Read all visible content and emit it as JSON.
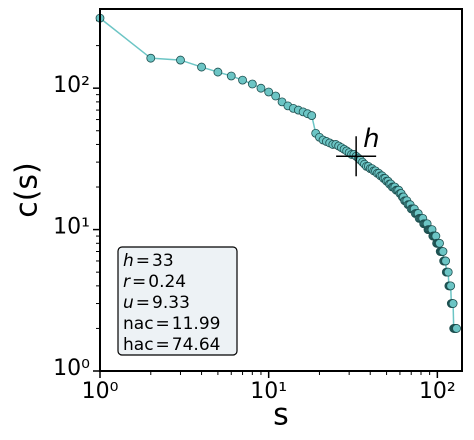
{
  "chart_data": {
    "type": "scatter",
    "x_label": "s",
    "y_label": "c(s)",
    "log_x": true,
    "log_y": true,
    "xlim": [
      1,
      140
    ],
    "ylim": [
      1,
      363
    ],
    "xticks": [
      {
        "value": 1,
        "label": "10⁰"
      },
      {
        "value": 10,
        "label": "10¹"
      },
      {
        "value": 100,
        "label": "10²"
      }
    ],
    "yticks": [
      {
        "value": 1,
        "label": "10⁰"
      },
      {
        "value": 10,
        "label": "10¹"
      },
      {
        "value": 100,
        "label": "10²"
      }
    ],
    "xminorticks": [
      2,
      3,
      4,
      5,
      6,
      7,
      8,
      9,
      20,
      30,
      40,
      50,
      60,
      70,
      80,
      90
    ],
    "yminorticks": [
      2,
      3,
      4,
      5,
      6,
      7,
      8,
      9,
      20,
      30,
      40,
      50,
      60,
      70,
      80,
      90,
      200,
      300
    ],
    "color": "#6cc5c5",
    "edge_color": "#1d4f4f",
    "x": [
      1,
      2,
      3,
      4,
      5,
      6,
      7,
      8,
      9,
      10,
      11,
      12,
      13,
      14,
      15,
      16,
      17,
      18,
      19,
      20,
      21,
      22,
      23,
      24,
      25,
      26,
      27,
      28,
      29,
      30,
      31,
      32,
      33,
      34,
      35,
      36,
      37,
      38,
      39,
      40,
      41,
      42,
      43,
      44,
      45,
      46,
      47,
      48,
      49,
      50,
      51,
      52,
      53,
      54,
      55,
      56,
      57,
      58,
      59,
      60,
      61,
      62,
      63,
      64,
      65,
      66,
      67,
      68,
      69,
      70,
      71,
      72,
      73,
      74,
      75,
      76,
      77,
      78,
      79,
      80,
      81,
      82,
      83,
      84,
      85,
      86,
      87,
      88,
      89,
      90,
      91,
      92,
      93,
      94,
      95,
      96,
      97,
      98,
      99,
      100,
      101,
      102,
      103,
      104,
      105,
      106,
      107,
      108,
      109,
      110,
      111,
      112,
      113,
      114,
      115,
      116,
      117,
      118,
      119,
      120,
      121,
      122,
      123,
      124,
      125,
      126,
      127,
      128,
      129,
      130
    ],
    "values": [
      313,
      163,
      158,
      141,
      130,
      122,
      114,
      107,
      100,
      94,
      88,
      80,
      75,
      72,
      70,
      68,
      66,
      64,
      48,
      45,
      43,
      42,
      41,
      40,
      40,
      39,
      38,
      37,
      36,
      35,
      34,
      34,
      33,
      32,
      31,
      30,
      29,
      28,
      28,
      27,
      27,
      26,
      26,
      25,
      25,
      24,
      24,
      23,
      23,
      22,
      22,
      21,
      21,
      20,
      20,
      20,
      19,
      19,
      19,
      18,
      18,
      17,
      17,
      16,
      16,
      16,
      15,
      15,
      15,
      14,
      14,
      14,
      14,
      13,
      13,
      13,
      13,
      12,
      12,
      12,
      12,
      12,
      11,
      11,
      11,
      11,
      11,
      10,
      10,
      10,
      10,
      10,
      10,
      9,
      9,
      9,
      9,
      9,
      8,
      8,
      8,
      8,
      8,
      7,
      7,
      7,
      7,
      7,
      6,
      6,
      6,
      6,
      5,
      5,
      5,
      5,
      4,
      4,
      4,
      4,
      3,
      3,
      3,
      3,
      2,
      2,
      2,
      2,
      2,
      2
    ],
    "marker": {
      "x": 33,
      "y": 33,
      "label": "h"
    },
    "stats": [
      {
        "symbol": "h",
        "relation": "=",
        "value": 33
      },
      {
        "symbol": "r",
        "relation": "=",
        "value": 0.24
      },
      {
        "symbol": "u",
        "relation": "=",
        "value": 9.33
      },
      {
        "symbol": "nac",
        "relation": "=",
        "value": 11.99
      },
      {
        "symbol": "hac",
        "relation": "=",
        "value": 74.64
      }
    ]
  }
}
